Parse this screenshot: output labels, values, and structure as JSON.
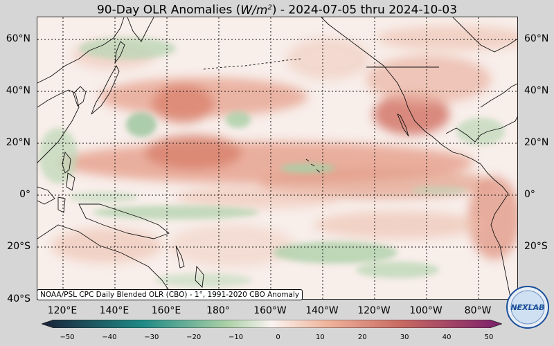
{
  "title": {
    "prefix": "90-Day OLR Anomalies (",
    "units_base": "W/m",
    "units_exp": "2",
    "suffix": ") - 2024-07-05 thru 2024-10-03"
  },
  "lat_labels": [
    "60°N",
    "40°N",
    "20°N",
    "0°",
    "20°S",
    "40°S"
  ],
  "lon_labels": [
    "120°E",
    "140°E",
    "160°E",
    "180°",
    "160°W",
    "140°W",
    "120°W",
    "100°W",
    "80°W"
  ],
  "credit": "NOAA/PSL CPC Daily Blended OLR (CBO) - 1°, 1991-2020 CBO Anomaly",
  "colorbar": {
    "ticks": [
      "−50",
      "−40",
      "−30",
      "−20",
      "−10",
      "0",
      "10",
      "20",
      "30",
      "40",
      "50"
    ],
    "min": -50,
    "max": 50,
    "colors": {
      "negative_deep": "#1a2238",
      "negative_mid": "#1f8a86",
      "negative_light": "#a9cfa6",
      "neutral": "#faf4f1",
      "positive_light": "#efb49c",
      "positive_mid": "#c96a62",
      "positive_deep": "#7a1f6b"
    }
  },
  "logo_text": "NEXLAB",
  "map": {
    "lon_range": [
      "110°E",
      "70°W"
    ],
    "lat_range": [
      "40°S",
      "68°N"
    ],
    "grid": true
  }
}
